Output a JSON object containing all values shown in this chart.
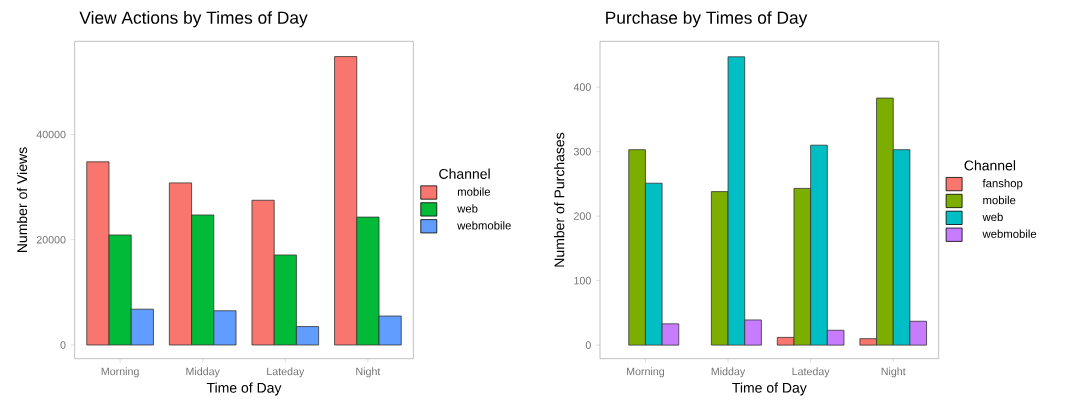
{
  "chart_data": [
    {
      "type": "bar",
      "title": "View Actions by Times of Day",
      "xlabel": "Time of Day",
      "ylabel": "Number of Views",
      "legend_title": "Channel",
      "legend": "right",
      "grid": false,
      "categories": [
        "Morning",
        "Midday",
        "Lateday",
        "Night"
      ],
      "series": [
        {
          "name": "mobile",
          "color": "#f8766d",
          "values": [
            34800,
            30800,
            27500,
            54800
          ]
        },
        {
          "name": "web",
          "color": "#00ba38",
          "values": [
            20900,
            24700,
            17100,
            24300
          ]
        },
        {
          "name": "webmobile",
          "color": "#619cff",
          "values": [
            6800,
            6500,
            3500,
            5500
          ]
        }
      ],
      "ylim": [
        -2600,
        57700
      ],
      "yticks": [
        0,
        20000,
        40000
      ]
    },
    {
      "type": "bar",
      "title": "Purchase by Times of Day",
      "xlabel": "Time of Day",
      "ylabel": "Number of Purchases",
      "legend_title": "Channel",
      "legend": "right",
      "grid": false,
      "categories": [
        "Morning",
        "Midday",
        "Lateday",
        "Night"
      ],
      "series": [
        {
          "name": "fanshop",
          "color": "#f8766d",
          "values": [
            null,
            null,
            12,
            10
          ]
        },
        {
          "name": "mobile",
          "color": "#7cae00",
          "values": [
            303,
            238,
            243,
            383
          ]
        },
        {
          "name": "web",
          "color": "#00bfc4",
          "values": [
            251,
            447,
            310,
            303
          ]
        },
        {
          "name": "webmobile",
          "color": "#c77cff",
          "values": [
            33,
            39,
            23,
            37
          ]
        }
      ],
      "ylim": [
        -21,
        471
      ],
      "yticks": [
        0,
        100,
        200,
        300,
        400
      ]
    }
  ]
}
